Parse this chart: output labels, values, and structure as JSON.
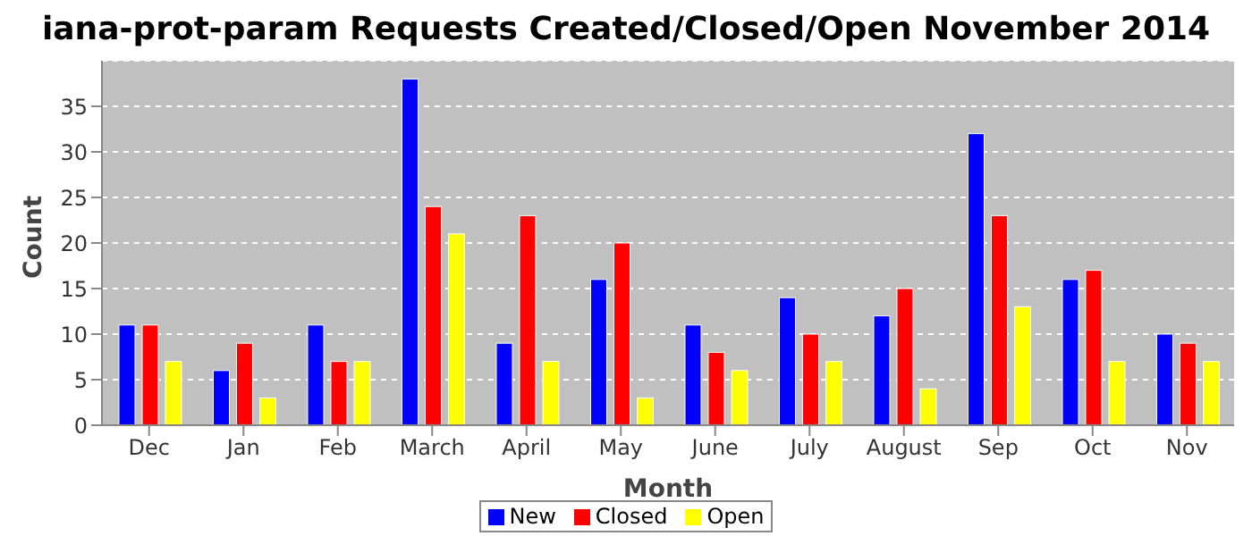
{
  "chart_data": {
    "type": "bar",
    "title": "iana-prot-param Requests Created/Closed/Open November 2014",
    "xlabel": "Month",
    "ylabel": "Count",
    "categories": [
      "Dec",
      "Jan",
      "Feb",
      "March",
      "April",
      "May",
      "June",
      "July",
      "August",
      "Sep",
      "Oct",
      "Nov"
    ],
    "series": [
      {
        "name": "New",
        "color": "#0000ff",
        "values": [
          11,
          6,
          11,
          38,
          9,
          16,
          11,
          14,
          12,
          32,
          16,
          10
        ]
      },
      {
        "name": "Closed",
        "color": "#ff0000",
        "values": [
          11,
          9,
          7,
          24,
          23,
          20,
          8,
          10,
          15,
          23,
          17,
          9
        ]
      },
      {
        "name": "Open",
        "color": "#ffff00",
        "values": [
          7,
          3,
          7,
          21,
          7,
          3,
          6,
          7,
          4,
          13,
          7,
          7
        ]
      }
    ],
    "ylim": [
      0,
      40
    ],
    "yticks": [
      0,
      5,
      10,
      15,
      20,
      25,
      30,
      35
    ],
    "grid": "y",
    "legend": "bottom"
  }
}
